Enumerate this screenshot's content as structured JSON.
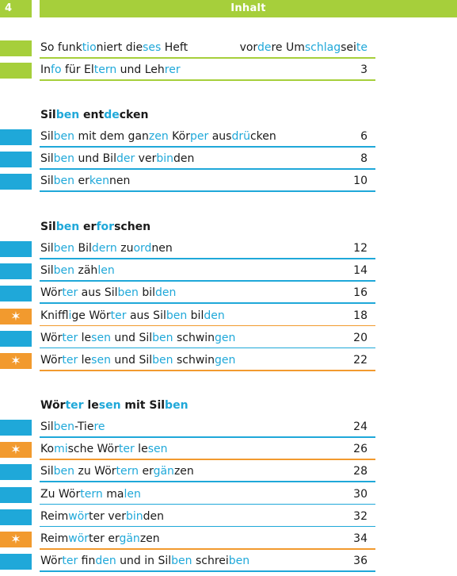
{
  "colors": {
    "green": "#a6cf3b",
    "blue": "#1fa8d9",
    "orange": "#f29a2e",
    "text": "#1a1a1a"
  },
  "header": {
    "page_number": "4",
    "title": "Inhalt",
    "title_segments": [
      [
        "In",
        false
      ],
      [
        "halt",
        true
      ]
    ]
  },
  "sections": [
    {
      "heading": "",
      "heading_segments": [],
      "entries": [
        {
          "type": "green",
          "page": "vordere Umschlagseite",
          "page_segments": [
            [
              "vor",
              false
            ],
            [
              "de",
              true
            ],
            [
              "re Um",
              false
            ],
            [
              "schlag",
              true
            ],
            [
              "sei",
              false
            ],
            [
              "te",
              true
            ]
          ],
          "segments": [
            [
              "So funk",
              false
            ],
            [
              "tio",
              true
            ],
            [
              "niert die",
              false
            ],
            [
              "ses",
              true
            ],
            [
              " Heft",
              false
            ]
          ]
        },
        {
          "type": "green",
          "page": "3",
          "segments": [
            [
              "In",
              false
            ],
            [
              "fo",
              true
            ],
            [
              " für El",
              false
            ],
            [
              "tern",
              true
            ],
            [
              " und Leh",
              false
            ],
            [
              "rer",
              true
            ]
          ]
        }
      ]
    },
    {
      "heading": "Silben entdecken",
      "heading_segments": [
        [
          "Sil",
          false
        ],
        [
          "ben",
          true
        ],
        [
          " ent",
          false
        ],
        [
          "de",
          true
        ],
        [
          "cken",
          false
        ]
      ],
      "entries": [
        {
          "type": "blue",
          "page": "6",
          "segments": [
            [
              "Sil",
              false
            ],
            [
              "ben",
              true
            ],
            [
              " mit dem gan",
              false
            ],
            [
              "zen",
              true
            ],
            [
              " Kör",
              false
            ],
            [
              "per",
              true
            ],
            [
              " aus",
              false
            ],
            [
              "drü",
              true
            ],
            [
              "cken",
              false
            ]
          ]
        },
        {
          "type": "blue",
          "page": "8",
          "segments": [
            [
              "Sil",
              false
            ],
            [
              "ben",
              true
            ],
            [
              " und Bil",
              false
            ],
            [
              "der",
              true
            ],
            [
              " ver",
              false
            ],
            [
              "bin",
              true
            ],
            [
              "den",
              false
            ]
          ]
        },
        {
          "type": "blue",
          "page": "10",
          "segments": [
            [
              "Sil",
              false
            ],
            [
              "ben",
              true
            ],
            [
              " er",
              false
            ],
            [
              "ken",
              true
            ],
            [
              "nen",
              false
            ]
          ]
        }
      ]
    },
    {
      "heading": "Silben erforschen",
      "heading_segments": [
        [
          "Sil",
          false
        ],
        [
          "ben",
          true
        ],
        [
          " er",
          false
        ],
        [
          "for",
          true
        ],
        [
          "schen",
          false
        ]
      ],
      "entries": [
        {
          "type": "blue",
          "page": "12",
          "segments": [
            [
              "Sil",
              false
            ],
            [
              "ben",
              true
            ],
            [
              " Bil",
              false
            ],
            [
              "dern",
              true
            ],
            [
              " zu",
              false
            ],
            [
              "ord",
              true
            ],
            [
              "nen",
              false
            ]
          ]
        },
        {
          "type": "blue",
          "page": "14",
          "segments": [
            [
              "Sil",
              false
            ],
            [
              "ben",
              true
            ],
            [
              " zäh",
              false
            ],
            [
              "len",
              true
            ]
          ]
        },
        {
          "type": "blue",
          "page": "16",
          "segments": [
            [
              "Wör",
              false
            ],
            [
              "ter",
              true
            ],
            [
              " aus Sil",
              false
            ],
            [
              "ben",
              true
            ],
            [
              " bil",
              false
            ],
            [
              "den",
              true
            ]
          ]
        },
        {
          "type": "orange",
          "page": "18",
          "segments": [
            [
              "Kniff",
              false
            ],
            [
              "li",
              true
            ],
            [
              "ge Wör",
              false
            ],
            [
              "ter",
              true
            ],
            [
              " aus Sil",
              false
            ],
            [
              "ben",
              true
            ],
            [
              " bil",
              false
            ],
            [
              "den",
              true
            ]
          ]
        },
        {
          "type": "blue",
          "page": "20",
          "segments": [
            [
              "Wör",
              false
            ],
            [
              "ter",
              true
            ],
            [
              " le",
              false
            ],
            [
              "sen",
              true
            ],
            [
              " und Sil",
              false
            ],
            [
              "ben",
              true
            ],
            [
              " schwin",
              false
            ],
            [
              "gen",
              true
            ]
          ]
        },
        {
          "type": "orange",
          "page": "22",
          "segments": [
            [
              "Wör",
              false
            ],
            [
              "ter",
              true
            ],
            [
              " le",
              false
            ],
            [
              "sen",
              true
            ],
            [
              " und Sil",
              false
            ],
            [
              "ben",
              true
            ],
            [
              " schwin",
              false
            ],
            [
              "gen",
              true
            ]
          ]
        }
      ]
    },
    {
      "heading": "Wörter lesen mit Silben",
      "heading_segments": [
        [
          "Wör",
          false
        ],
        [
          "ter",
          true
        ],
        [
          " le",
          false
        ],
        [
          "sen",
          true
        ],
        [
          " mit Sil",
          false
        ],
        [
          "ben",
          true
        ]
      ],
      "entries": [
        {
          "type": "blue",
          "page": "24",
          "segments": [
            [
              "Sil",
              false
            ],
            [
              "ben",
              true
            ],
            [
              "-Tie",
              false
            ],
            [
              "re",
              true
            ]
          ]
        },
        {
          "type": "orange",
          "page": "26",
          "segments": [
            [
              "Ko",
              false
            ],
            [
              "mi",
              true
            ],
            [
              "sche Wör",
              false
            ],
            [
              "ter",
              true
            ],
            [
              " le",
              false
            ],
            [
              "sen",
              true
            ]
          ]
        },
        {
          "type": "blue",
          "page": "28",
          "segments": [
            [
              "Sil",
              false
            ],
            [
              "ben",
              true
            ],
            [
              " zu Wör",
              false
            ],
            [
              "tern",
              true
            ],
            [
              " er",
              false
            ],
            [
              "gän",
              true
            ],
            [
              "zen",
              false
            ]
          ]
        },
        {
          "type": "blue",
          "page": "30",
          "segments": [
            [
              "Zu Wör",
              false
            ],
            [
              "tern",
              true
            ],
            [
              " ma",
              false
            ],
            [
              "len",
              true
            ]
          ]
        },
        {
          "type": "blue",
          "page": "32",
          "segments": [
            [
              "Reim",
              false
            ],
            [
              "wör",
              true
            ],
            [
              "ter ver",
              false
            ],
            [
              "bin",
              true
            ],
            [
              "den",
              false
            ]
          ]
        },
        {
          "type": "orange",
          "page": "34",
          "segments": [
            [
              "Reim",
              false
            ],
            [
              "wör",
              true
            ],
            [
              "ter er",
              false
            ],
            [
              "gän",
              true
            ],
            [
              "zen",
              false
            ]
          ]
        },
        {
          "type": "blue",
          "page": "36",
          "segments": [
            [
              "Wör",
              false
            ],
            [
              "ter",
              true
            ],
            [
              " fin",
              false
            ],
            [
              "den",
              true
            ],
            [
              " und in Sil",
              false
            ],
            [
              "ben",
              true
            ],
            [
              " schrei",
              false
            ],
            [
              "ben",
              true
            ]
          ]
        }
      ]
    }
  ]
}
